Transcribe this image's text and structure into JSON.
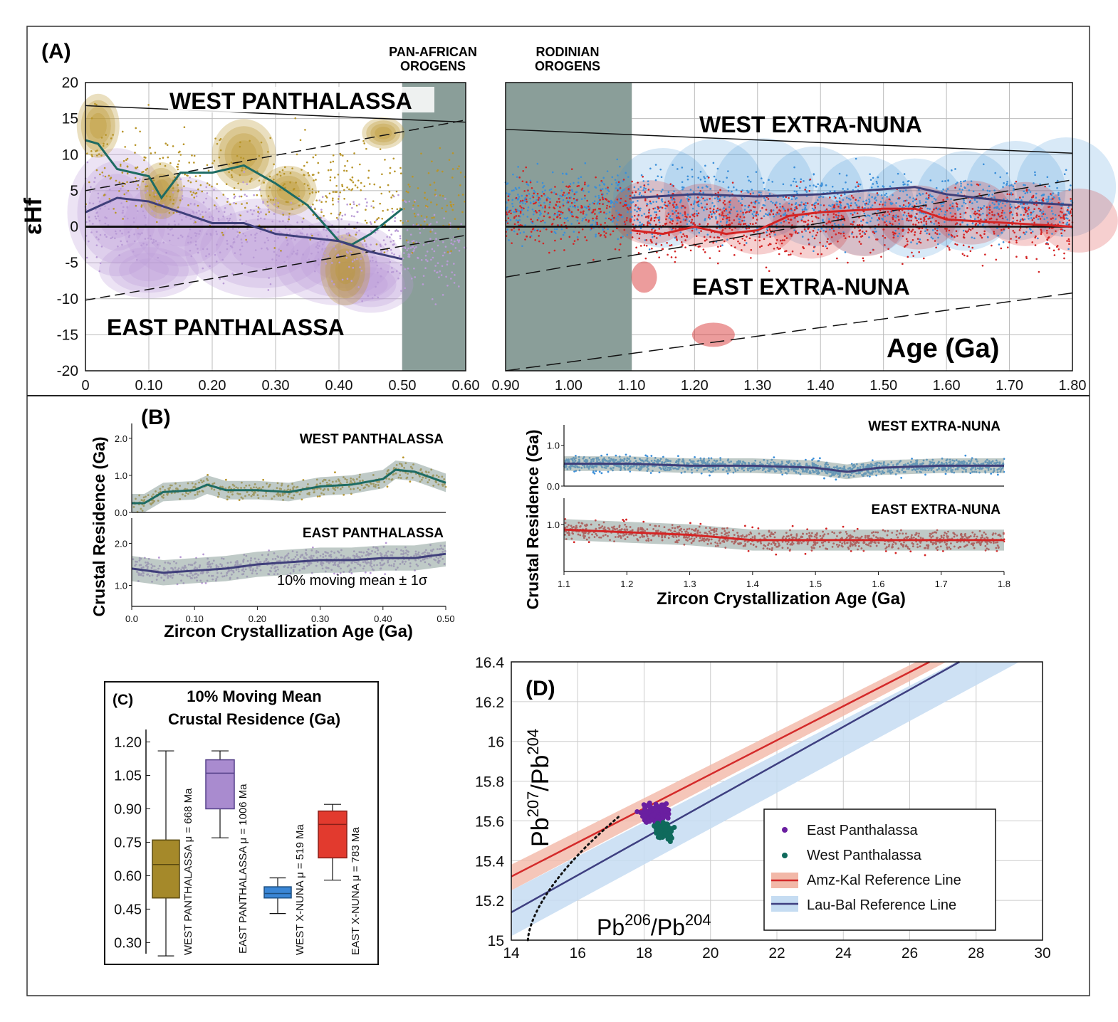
{
  "panel_labels": {
    "A": "(A)",
    "B": "(B)",
    "C": "(C)",
    "D": "(D)"
  },
  "panel_a": {
    "left": {
      "ylabel": "εHf",
      "title_top": "WEST PANTHALASSA",
      "title_bottom": "EAST PANTHALASSA",
      "orogen_label": [
        "PAN-AFRICAN",
        "OROGENS"
      ],
      "x_ticks": [
        "0",
        "0.10",
        "0.20",
        "0.30",
        "0.40",
        "0.50",
        "0.60"
      ],
      "y_ticks": [
        "20",
        "15",
        "10",
        "5",
        "0",
        "-5",
        "-10",
        "-15",
        "-20"
      ]
    },
    "right": {
      "title_top": "WEST EXTRA-NUNA",
      "title_bottom": "EAST EXTRA-NUNA",
      "orogen_label": [
        "RODINIAN",
        "OROGENS"
      ],
      "xlabel": "Age (Ga)",
      "x_ticks": [
        "0.90",
        "1.00",
        "1.10",
        "1.20",
        "1.30",
        "1.40",
        "1.50",
        "1.60",
        "1.70",
        "1.80"
      ]
    }
  },
  "panel_b": {
    "ylabel": "Crustal Residence (Ga)",
    "xlabel": "Zircon Crystallization Age (Ga)",
    "legend_note": "10% moving mean ± 1σ",
    "left_top_title": "WEST PANTHALASSA",
    "left_bottom_title": "EAST PANTHALASSA",
    "right_top_title": "WEST EXTRA-NUNA",
    "right_bottom_title": "EAST EXTRA-NUNA",
    "left_x_ticks": [
      "0.0",
      "0.10",
      "0.20",
      "0.30",
      "0.40",
      "0.50"
    ],
    "right_x_ticks": [
      "1.1",
      "1.2",
      "1.3",
      "1.4",
      "1.5",
      "1.6",
      "1.7",
      "1.8"
    ],
    "left_top_y_ticks": [
      "2.0",
      "1.0",
      "0.0"
    ],
    "left_bottom_y_ticks": [
      "2.0",
      "1.0"
    ],
    "right_top_y_ticks": [
      "1.0",
      "0.0"
    ],
    "right_bottom_y_ticks": [
      "1.0"
    ]
  },
  "colors": {
    "west_panthalassa": "#b8952a",
    "west_mean": "#1d6b63",
    "east_panthalassa": "#b99bd6",
    "east_mean": "#3f3f7a",
    "west_nuna": "#3b8fd9",
    "east_nuna": "#d42424",
    "shade": "#8a9e99",
    "amz_line": "#d42a2a",
    "amz_band": "#f2b8a8",
    "lau_line": "#3e3f80",
    "lau_band": "#c5dcf2",
    "box_west_p": "#a5892a",
    "box_east_p": "#a98bcf",
    "box_west_n": "#3a86d6",
    "box_east_n": "#e23a2e"
  },
  "chart_data": [
    {
      "type": "scatter",
      "panel": "A-left",
      "ylabel": "εHf",
      "xlim": [
        0,
        0.6
      ],
      "ylim": [
        -20,
        20
      ],
      "series": [
        {
          "name": "WEST PANTHALASSA",
          "mean_x": [
            0,
            0.02,
            0.05,
            0.1,
            0.12,
            0.15,
            0.2,
            0.25,
            0.3,
            0.35,
            0.4,
            0.42,
            0.45,
            0.5
          ],
          "mean_y": [
            12,
            11.5,
            8,
            7,
            4,
            7.5,
            7.5,
            8.5,
            6,
            3,
            -2,
            -2.5,
            -1,
            2.5
          ]
        },
        {
          "name": "EAST PANTHALASSA",
          "mean_x": [
            0,
            0.05,
            0.1,
            0.15,
            0.2,
            0.25,
            0.3,
            0.35,
            0.4,
            0.45,
            0.5
          ],
          "mean_y": [
            2,
            4,
            3.5,
            2,
            0.5,
            0.5,
            -1,
            -1.5,
            -2,
            -3.5,
            -4.5
          ]
        }
      ],
      "reference_lines": [
        {
          "x": [
            0,
            0.6
          ],
          "y": [
            16.8,
            14.5
          ]
        },
        {
          "x": [
            0,
            0.6
          ],
          "y": [
            5,
            14.8
          ],
          "dashed": true
        },
        {
          "x": [
            0,
            0.6
          ],
          "y": [
            -10.2,
            -1.2
          ],
          "dashed": true
        }
      ],
      "shaded_x": [
        0.5,
        0.6
      ]
    },
    {
      "type": "scatter",
      "panel": "A-right",
      "xlabel": "Age (Ga)",
      "xlim": [
        0.9,
        1.8
      ],
      "ylim": [
        -20,
        20
      ],
      "series": [
        {
          "name": "WEST EXTRA-NUNA",
          "mean_x": [
            1.1,
            1.2,
            1.3,
            1.4,
            1.5,
            1.55,
            1.6,
            1.7,
            1.8
          ],
          "mean_y": [
            4,
            4.5,
            4.2,
            4.5,
            5.2,
            5.5,
            4.5,
            3.5,
            3
          ]
        },
        {
          "name": "EAST EXTRA-NUNA",
          "mean_x": [
            1.1,
            1.15,
            1.2,
            1.25,
            1.3,
            1.35,
            1.4,
            1.5,
            1.55,
            1.6,
            1.7,
            1.8
          ],
          "mean_y": [
            -0.5,
            -1,
            0,
            -1,
            -0.5,
            1.5,
            2,
            2.5,
            2.5,
            1,
            0.5,
            0
          ]
        }
      ],
      "reference_lines": [
        {
          "x": [
            0.9,
            1.8
          ],
          "y": [
            13.5,
            10.2
          ]
        },
        {
          "x": [
            0.9,
            1.8
          ],
          "y": [
            -7,
            6.5
          ],
          "dashed": true
        },
        {
          "x": [
            0.9,
            1.8
          ],
          "y": [
            -20,
            -9.2
          ],
          "dashed": true
        }
      ],
      "shaded_x": [
        0.9,
        1.1
      ]
    },
    {
      "type": "line",
      "panel": "B",
      "series": [
        {
          "name": "WEST PANTHALASSA",
          "x": [
            0,
            0.02,
            0.05,
            0.1,
            0.12,
            0.15,
            0.2,
            0.25,
            0.3,
            0.35,
            0.4,
            0.42,
            0.45,
            0.5
          ],
          "y": [
            0.25,
            0.25,
            0.55,
            0.6,
            0.75,
            0.6,
            0.6,
            0.55,
            0.7,
            0.75,
            0.9,
            1.15,
            1.1,
            0.8
          ]
        },
        {
          "name": "EAST PANTHALASSA",
          "x": [
            0,
            0.05,
            0.1,
            0.15,
            0.2,
            0.25,
            0.3,
            0.35,
            0.4,
            0.45,
            0.5
          ],
          "y": [
            1.4,
            1.3,
            1.35,
            1.4,
            1.5,
            1.55,
            1.6,
            1.6,
            1.65,
            1.65,
            1.75
          ]
        },
        {
          "name": "WEST EXTRA-NUNA",
          "x": [
            1.1,
            1.2,
            1.3,
            1.4,
            1.5,
            1.55,
            1.6,
            1.7,
            1.8
          ],
          "y": [
            0.55,
            0.55,
            0.5,
            0.5,
            0.45,
            0.35,
            0.45,
            0.5,
            0.5
          ]
        },
        {
          "name": "EAST EXTRA-NUNA",
          "x": [
            1.1,
            1.2,
            1.3,
            1.4,
            1.5,
            1.6,
            1.7,
            1.8
          ],
          "y": [
            0.9,
            0.85,
            0.8,
            0.7,
            0.7,
            0.7,
            0.7,
            0.7
          ]
        }
      ]
    },
    {
      "type": "box",
      "panel": "C",
      "title": "10% Moving Mean Crustal Residence (Ga)",
      "ylim": [
        0.25,
        1.25
      ],
      "y_ticks": [
        "1.20",
        "1.05",
        "0.90",
        "0.75",
        "0.60",
        "0.45",
        "0.30"
      ],
      "boxes": [
        {
          "label": "WEST PANTHALASSA μ = 668 Ma",
          "min": 0.24,
          "q1": 0.5,
          "median": 0.65,
          "q3": 0.76,
          "max": 1.16
        },
        {
          "label": "EAST PANTHALASSA μ = 1006 Ma",
          "min": 0.77,
          "q1": 0.9,
          "median": 1.06,
          "q3": 1.12,
          "max": 1.16
        },
        {
          "label": "WEST X-NUNA μ = 519 Ma",
          "min": 0.43,
          "q1": 0.5,
          "median": 0.52,
          "q3": 0.55,
          "max": 0.59
        },
        {
          "label": "EAST X-NUNA μ = 783 Ma",
          "min": 0.58,
          "q1": 0.68,
          "median": 0.83,
          "q3": 0.89,
          "max": 0.92
        }
      ]
    },
    {
      "type": "scatter",
      "panel": "D",
      "xlabel_base": "Pb",
      "xlabel_sup1": "206",
      "xlabel_mid": "/Pb",
      "xlabel_sup2": "204",
      "ylabel_base": "Pb",
      "ylabel_sup1": "207",
      "ylabel_mid": "/Pb",
      "ylabel_sup2": "204",
      "xlim": [
        14,
        30
      ],
      "ylim": [
        15,
        16.4
      ],
      "x_ticks": [
        "14",
        "16",
        "18",
        "20",
        "22",
        "24",
        "26",
        "28",
        "30"
      ],
      "y_ticks": [
        "16.4",
        "16.2",
        "16",
        "15.8",
        "15.6",
        "15.4",
        "15.2",
        "15"
      ],
      "series": [
        {
          "name": "East Panthalassa",
          "center": [
            18.3,
            15.64
          ]
        },
        {
          "name": "West Panthalassa",
          "center": [
            18.6,
            15.55
          ]
        }
      ],
      "reference_lines": [
        {
          "name": "Amz-Kal Reference Line",
          "x": [
            14,
            26.6
          ],
          "y": [
            15.32,
            16.4
          ]
        },
        {
          "name": "Lau-Bal Reference Line",
          "x": [
            14,
            27.5
          ],
          "y": [
            15.14,
            16.4
          ]
        }
      ],
      "legend": [
        "East Panthalassa",
        "West Panthalassa",
        "Amz-Kal Reference Line",
        "Lau-Bal Reference Line"
      ]
    }
  ]
}
